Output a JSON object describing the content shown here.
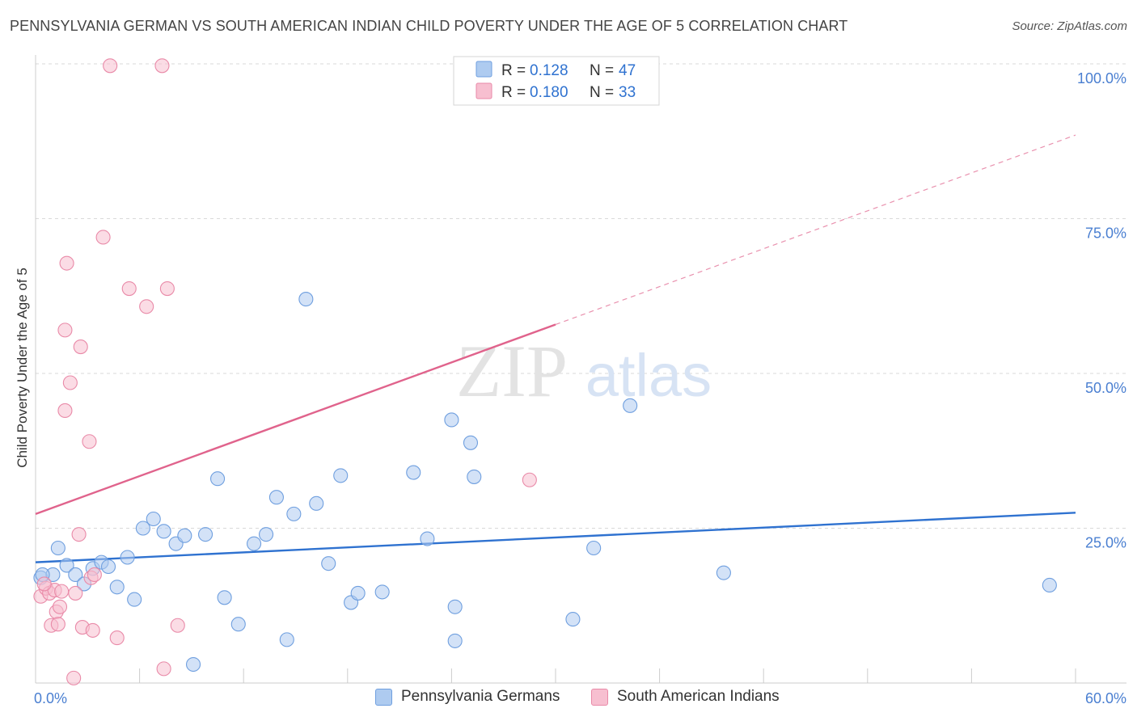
{
  "title": "PENNSYLVANIA GERMAN VS SOUTH AMERICAN INDIAN CHILD POVERTY UNDER THE AGE OF 5 CORRELATION CHART",
  "source": "Source: ZipAtlas.com",
  "watermark": {
    "part1": "ZIP",
    "part2": "atlas"
  },
  "colors": {
    "blue_fill": "#aecbf0",
    "blue_stroke": "#6f9fdf",
    "blue_line": "#2f72d0",
    "pink_fill": "#f7bfd0",
    "pink_stroke": "#e98aa8",
    "pink_line": "#e0638c",
    "axis_text": "#4a7fd1",
    "grid": "#d9d9d9"
  },
  "legend": {
    "r_label": "R =",
    "n_label": "N =",
    "rows": [
      {
        "series": "Pennsylvania Germans",
        "r": "0.128",
        "n": "47"
      },
      {
        "series": "South American Indians",
        "r": "0.180",
        "n": "33"
      }
    ]
  },
  "chart_data": {
    "type": "scatter",
    "title": "PENNSYLVANIA GERMAN VS SOUTH AMERICAN INDIAN CHILD POVERTY UNDER THE AGE OF 5 CORRELATION CHART",
    "xlabel": "",
    "ylabel": "Child Poverty Under the Age of 5",
    "xlim": [
      0,
      60
    ],
    "ylim": [
      0,
      100
    ],
    "x_tick_labels": [
      "0.0%",
      "60.0%"
    ],
    "y_tick_values": [
      25,
      50,
      75,
      100
    ],
    "y_tick_labels": [
      "25.0%",
      "50.0%",
      "75.0%",
      "100.0%"
    ],
    "grid": true,
    "legend_position": "top-center",
    "series": [
      {
        "name": "Pennsylvania Germans",
        "color": "blue",
        "r": 0.128,
        "n": 47,
        "trend": {
          "x0": 0,
          "y0": 19.5,
          "x1": 60,
          "y1": 27.5
        },
        "points": [
          [
            0.3,
            17.0
          ],
          [
            1.0,
            17.5
          ],
          [
            1.3,
            21.8
          ],
          [
            1.8,
            19.0
          ],
          [
            2.3,
            17.5
          ],
          [
            2.8,
            16.0
          ],
          [
            3.3,
            18.5
          ],
          [
            3.8,
            19.5
          ],
          [
            4.2,
            18.8
          ],
          [
            4.7,
            15.5
          ],
          [
            5.3,
            20.3
          ],
          [
            5.7,
            13.5
          ],
          [
            6.2,
            25.0
          ],
          [
            6.8,
            26.5
          ],
          [
            7.4,
            24.5
          ],
          [
            8.1,
            22.5
          ],
          [
            8.6,
            23.8
          ],
          [
            9.1,
            3.0
          ],
          [
            9.8,
            24.0
          ],
          [
            10.5,
            33.0
          ],
          [
            10.9,
            13.8
          ],
          [
            11.7,
            9.5
          ],
          [
            12.6,
            22.5
          ],
          [
            13.3,
            24.0
          ],
          [
            13.9,
            30.0
          ],
          [
            14.5,
            7.0
          ],
          [
            14.9,
            27.3
          ],
          [
            15.6,
            62.0
          ],
          [
            16.2,
            29.0
          ],
          [
            16.9,
            19.3
          ],
          [
            17.6,
            33.5
          ],
          [
            18.2,
            13.0
          ],
          [
            18.6,
            14.5
          ],
          [
            20.0,
            14.7
          ],
          [
            21.8,
            34.0
          ],
          [
            22.6,
            23.3
          ],
          [
            24.0,
            42.5
          ],
          [
            24.2,
            12.3
          ],
          [
            24.2,
            6.8
          ],
          [
            25.1,
            38.8
          ],
          [
            25.3,
            33.3
          ],
          [
            31.0,
            10.3
          ],
          [
            32.2,
            21.8
          ],
          [
            34.3,
            44.8
          ],
          [
            39.7,
            17.8
          ],
          [
            58.5,
            15.8
          ],
          [
            0.4,
            17.5
          ]
        ]
      },
      {
        "name": "South American Indians",
        "color": "pink",
        "r": 0.18,
        "n": 33,
        "trend": {
          "x0": 0,
          "y0": 27.3,
          "x1": 30,
          "y1": 57.9,
          "dash_to_x": 60,
          "dash_to_y": 88.5
        },
        "points": [
          [
            0.3,
            14.0
          ],
          [
            0.6,
            15.3
          ],
          [
            0.8,
            14.5
          ],
          [
            0.9,
            9.3
          ],
          [
            1.1,
            15.0
          ],
          [
            1.2,
            11.5
          ],
          [
            1.3,
            9.5
          ],
          [
            1.4,
            12.3
          ],
          [
            1.5,
            14.8
          ],
          [
            1.7,
            44.0
          ],
          [
            1.7,
            57.0
          ],
          [
            1.8,
            67.8
          ],
          [
            2.0,
            48.5
          ],
          [
            2.2,
            0.8
          ],
          [
            2.3,
            14.5
          ],
          [
            2.5,
            24.0
          ],
          [
            2.6,
            54.3
          ],
          [
            2.7,
            9.0
          ],
          [
            3.1,
            39.0
          ],
          [
            3.2,
            17.0
          ],
          [
            3.3,
            8.5
          ],
          [
            3.4,
            17.5
          ],
          [
            3.9,
            72.0
          ],
          [
            4.3,
            99.7
          ],
          [
            4.7,
            7.3
          ],
          [
            5.4,
            63.7
          ],
          [
            6.4,
            60.8
          ],
          [
            7.3,
            99.7
          ],
          [
            7.4,
            2.3
          ],
          [
            7.6,
            63.7
          ],
          [
            8.2,
            9.3
          ],
          [
            28.5,
            32.8
          ],
          [
            0.5,
            16.0
          ]
        ]
      }
    ]
  }
}
